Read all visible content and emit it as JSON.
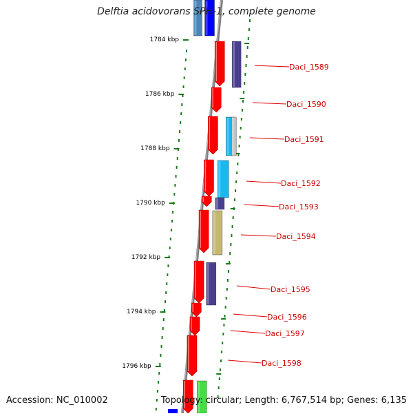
{
  "title": "Delftia acidovorans SPH-1, complete genome",
  "footer": {
    "accession": "Accession: NC_010002",
    "summary": "Topology: circular; Length: 6,767,514 bp; Genes: 6,135"
  },
  "ticks": [
    {
      "label": "1784 kbp"
    },
    {
      "label": "1786 kbp"
    },
    {
      "label": "1788 kbp"
    },
    {
      "label": "1790 kbp"
    },
    {
      "label": "1792 kbp"
    },
    {
      "label": "1794 kbp"
    },
    {
      "label": "1796 kbp"
    }
  ],
  "genes": [
    {
      "label": "Daci_1589"
    },
    {
      "label": "Daci_1590"
    },
    {
      "label": "Daci_1591"
    },
    {
      "label": "Daci_1592"
    },
    {
      "label": "Daci_1593"
    },
    {
      "label": "Daci_1594"
    },
    {
      "label": "Daci_1595"
    },
    {
      "label": "Daci_1596"
    },
    {
      "label": "Daci_1597"
    },
    {
      "label": "Daci_1598"
    }
  ],
  "colors": {
    "gene": "#ff0000",
    "label_line": "#dd0000",
    "label_text": "#cc0000",
    "backbone": "#808080",
    "gc_dots": "#1a7a1a",
    "cog_navy": "#4a3f8f",
    "cog_cyan": "#1ab8f0",
    "cog_khaki": "#c4b870",
    "cog_grey": "#c0c0c0",
    "cog_green": "#44dd44",
    "cog_blue": "#0000ff",
    "cog_steel": "#4a86b8"
  }
}
